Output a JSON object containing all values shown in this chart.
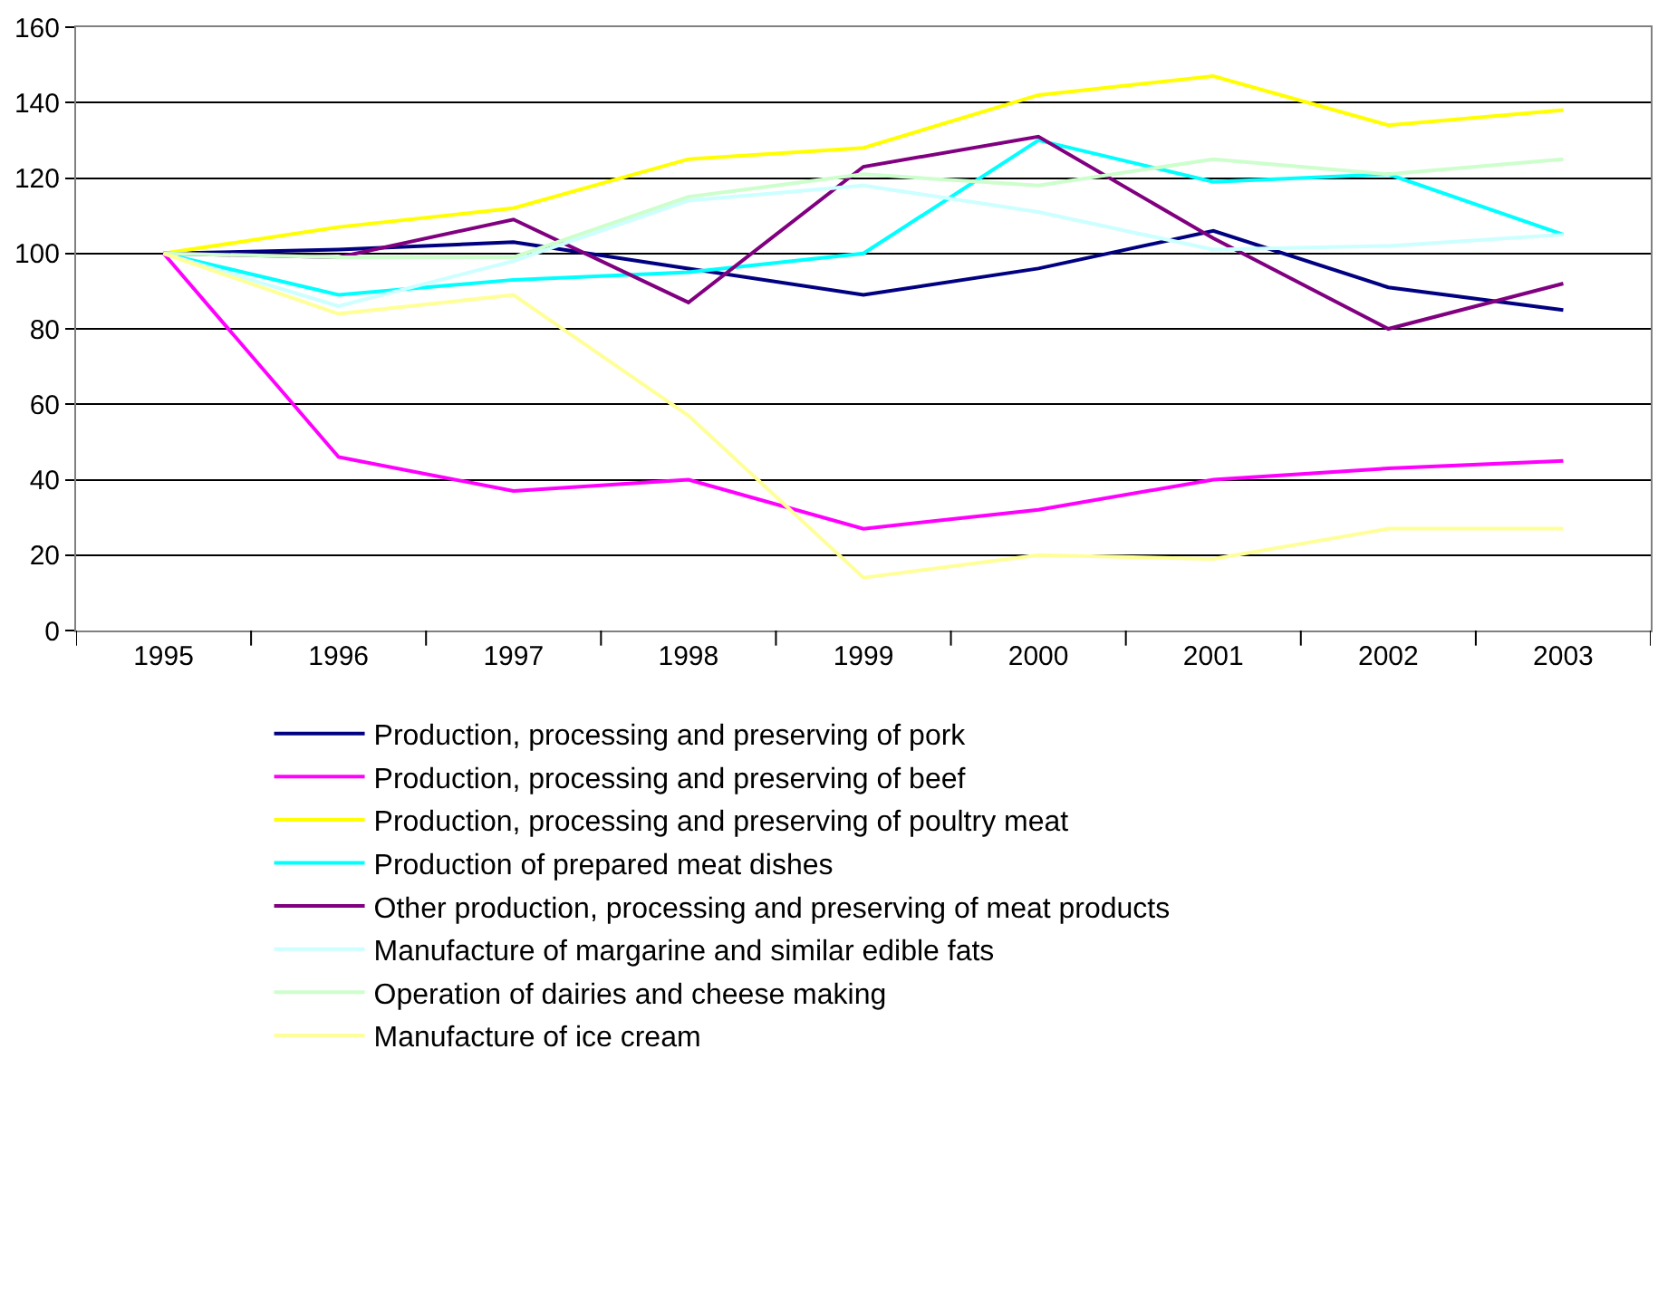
{
  "chart_data": {
    "type": "line",
    "categories": [
      "1995",
      "1996",
      "1997",
      "1998",
      "1999",
      "2000",
      "2001",
      "2002",
      "2003"
    ],
    "ylim": [
      0,
      160
    ],
    "yticks": [
      0,
      20,
      40,
      60,
      80,
      100,
      120,
      140,
      160
    ],
    "grid": "y",
    "legend": "bottom",
    "marker": "none",
    "line_style": "solid",
    "series": [
      {
        "name": "Production, processing and preserving of pork",
        "color": "#000080",
        "values": [
          100,
          101,
          103,
          96,
          89,
          96,
          106,
          91,
          85
        ]
      },
      {
        "name": "Production, processing and preserving of beef",
        "color": "#ff00ff",
        "values": [
          100,
          46,
          37,
          40,
          27,
          32,
          40,
          43,
          45
        ]
      },
      {
        "name": "Production, processing and preserving of poultry meat",
        "color": "#ffff00",
        "values": [
          100,
          107,
          112,
          125,
          128,
          142,
          147,
          134,
          138
        ]
      },
      {
        "name": "Production of prepared meat dishes",
        "color": "#00ffff",
        "values": [
          100,
          89,
          93,
          95,
          100,
          130,
          119,
          121,
          105
        ]
      },
      {
        "name": "Other production, processing and preserving of meat products",
        "color": "#800080",
        "values": [
          100,
          99,
          109,
          87,
          123,
          131,
          104,
          80,
          92
        ]
      },
      {
        "name": "Manufacture of margarine and similar edible fats",
        "color": "#ccffff",
        "values": [
          100,
          86,
          98,
          114,
          118,
          111,
          101,
          102,
          105
        ]
      },
      {
        "name": "Operation of dairies and cheese making",
        "color": "#ccffcc",
        "values": [
          100,
          99,
          99,
          115,
          121,
          118,
          125,
          121,
          125
        ]
      },
      {
        "name": "Manufacture of ice cream",
        "color": "#ffff99",
        "values": [
          100,
          84,
          89,
          57,
          14,
          20,
          19,
          27,
          27
        ]
      }
    ]
  }
}
